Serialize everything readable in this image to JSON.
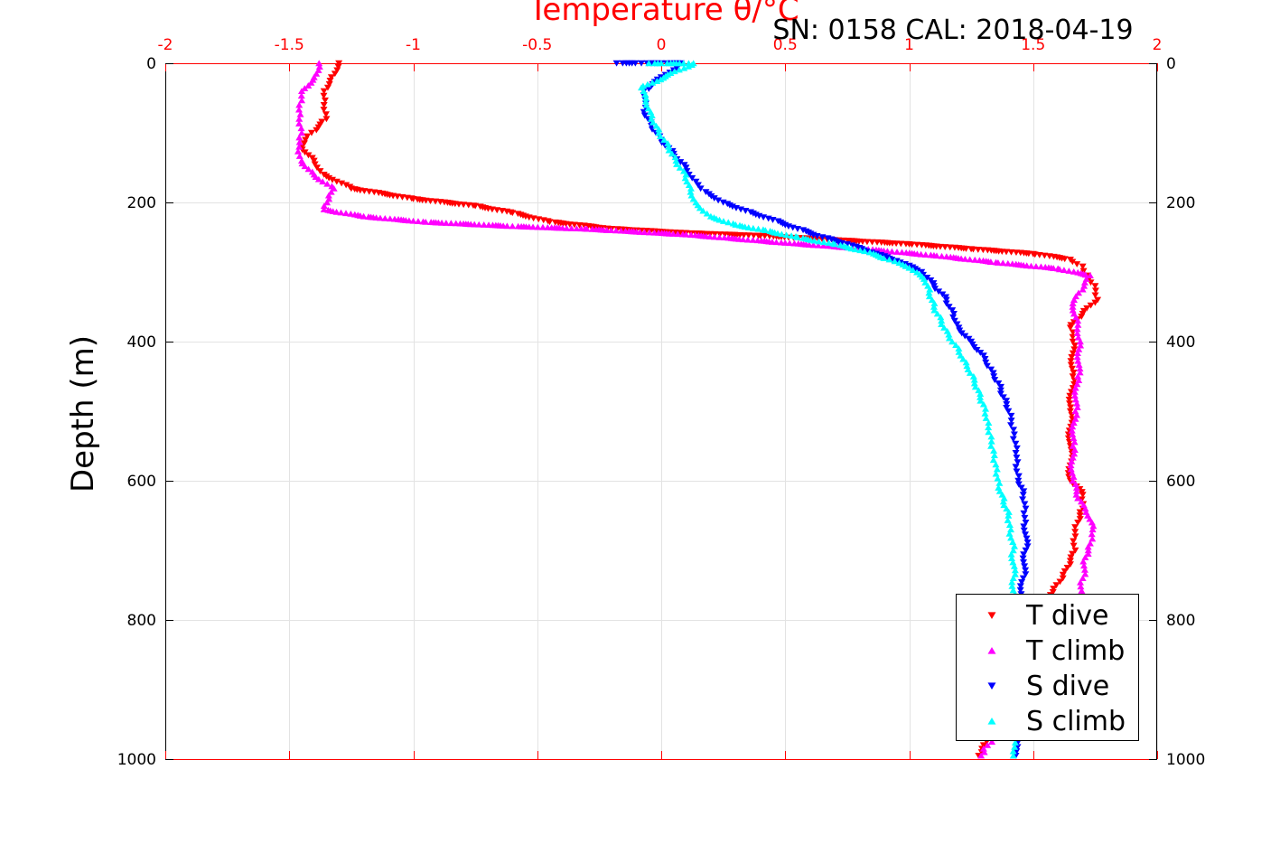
{
  "header": {
    "title": "Temperature θ/°C",
    "annotation": "SN: 0158  CAL: 2018-04-19"
  },
  "chart_data": {
    "type": "scatter",
    "x_axis": {
      "label": "Temperature θ/°C",
      "position": "top",
      "range": [
        -2,
        2
      ],
      "ticks": [
        -2,
        -1.5,
        -1,
        -0.5,
        0,
        0.5,
        1,
        1.5,
        2
      ],
      "tick_labels": [
        "-2",
        "-1.5",
        "-1",
        "-0.5",
        "0",
        "0.5",
        "1",
        "1.5",
        "2"
      ],
      "color": "#ff0000"
    },
    "y_axis": {
      "label": "Depth (m)",
      "range": [
        0,
        1000
      ],
      "reversed": true,
      "ticks": [
        0,
        200,
        400,
        600,
        800,
        1000
      ],
      "tick_labels": [
        "0",
        "200",
        "400",
        "600",
        "800",
        "1000"
      ]
    },
    "grid": true,
    "legend_position": "bottom-right",
    "series": [
      {
        "name": "T dive",
        "color": "#ff0000",
        "marker": "triangle-down",
        "points": [
          [
            -1.3,
            0
          ],
          [
            -1.33,
            20
          ],
          [
            -1.36,
            40
          ],
          [
            -1.36,
            60
          ],
          [
            -1.35,
            80
          ],
          [
            -1.41,
            100
          ],
          [
            -1.45,
            120
          ],
          [
            -1.4,
            140
          ],
          [
            -1.36,
            160
          ],
          [
            -1.25,
            180
          ],
          [
            -1.0,
            195
          ],
          [
            -0.75,
            205
          ],
          [
            -0.6,
            215
          ],
          [
            -0.45,
            228
          ],
          [
            -0.2,
            238
          ],
          [
            0.1,
            244
          ],
          [
            0.4,
            248
          ],
          [
            0.7,
            254
          ],
          [
            1.0,
            260
          ],
          [
            1.25,
            267
          ],
          [
            1.5,
            274
          ],
          [
            1.65,
            282
          ],
          [
            1.7,
            292
          ],
          [
            1.72,
            305
          ],
          [
            1.75,
            320
          ],
          [
            1.76,
            340
          ],
          [
            1.7,
            360
          ],
          [
            1.65,
            380
          ],
          [
            1.66,
            400
          ],
          [
            1.66,
            450
          ],
          [
            1.65,
            500
          ],
          [
            1.65,
            550
          ],
          [
            1.65,
            600
          ],
          [
            1.7,
            620
          ],
          [
            1.7,
            640
          ],
          [
            1.68,
            660
          ],
          [
            1.67,
            680
          ],
          [
            1.67,
            700
          ],
          [
            1.65,
            720
          ],
          [
            1.62,
            740
          ],
          [
            1.58,
            760
          ],
          [
            1.52,
            780
          ],
          [
            1.47,
            800
          ],
          [
            1.4,
            840
          ],
          [
            1.36,
            880
          ],
          [
            1.34,
            920
          ],
          [
            1.32,
            960
          ],
          [
            1.3,
            980
          ],
          [
            1.28,
            995
          ]
        ]
      },
      {
        "name": "T climb",
        "color": "#ff00ff",
        "marker": "triangle-up",
        "points": [
          [
            -1.38,
            0
          ],
          [
            -1.4,
            20
          ],
          [
            -1.45,
            40
          ],
          [
            -1.46,
            60
          ],
          [
            -1.46,
            80
          ],
          [
            -1.45,
            100
          ],
          [
            -1.46,
            120
          ],
          [
            -1.45,
            140
          ],
          [
            -1.4,
            160
          ],
          [
            -1.32,
            180
          ],
          [
            -1.34,
            195
          ],
          [
            -1.36,
            210
          ],
          [
            -1.2,
            220
          ],
          [
            -0.95,
            228
          ],
          [
            -0.6,
            234
          ],
          [
            -0.3,
            238
          ],
          [
            0.1,
            246
          ],
          [
            0.5,
            258
          ],
          [
            0.8,
            266
          ],
          [
            1.1,
            276
          ],
          [
            1.35,
            286
          ],
          [
            1.6,
            295
          ],
          [
            1.73,
            305
          ],
          [
            1.7,
            325
          ],
          [
            1.66,
            345
          ],
          [
            1.68,
            370
          ],
          [
            1.69,
            400
          ],
          [
            1.68,
            450
          ],
          [
            1.67,
            500
          ],
          [
            1.66,
            550
          ],
          [
            1.66,
            600
          ],
          [
            1.68,
            625
          ],
          [
            1.72,
            650
          ],
          [
            1.74,
            670
          ],
          [
            1.73,
            690
          ],
          [
            1.71,
            710
          ],
          [
            1.7,
            740
          ],
          [
            1.69,
            770
          ],
          [
            1.65,
            800
          ],
          [
            1.6,
            830
          ],
          [
            1.55,
            860
          ],
          [
            1.48,
            900
          ],
          [
            1.4,
            940
          ],
          [
            1.34,
            970
          ],
          [
            1.3,
            985
          ],
          [
            1.29,
            995
          ]
        ]
      },
      {
        "name": "S dive",
        "color": "#0000ff",
        "marker": "triangle-down",
        "points": [
          [
            -0.18,
            0
          ],
          [
            -0.08,
            0
          ],
          [
            0.0,
            0
          ],
          [
            0.08,
            0
          ],
          [
            -0.07,
            40
          ],
          [
            -0.07,
            70
          ],
          [
            -0.04,
            90
          ],
          [
            0.0,
            110
          ],
          [
            0.05,
            130
          ],
          [
            0.1,
            150
          ],
          [
            0.14,
            170
          ],
          [
            0.18,
            185
          ],
          [
            0.25,
            200
          ],
          [
            0.34,
            212
          ],
          [
            0.45,
            225
          ],
          [
            0.55,
            238
          ],
          [
            0.65,
            250
          ],
          [
            0.75,
            260
          ],
          [
            0.85,
            272
          ],
          [
            0.95,
            284
          ],
          [
            1.05,
            300
          ],
          [
            1.1,
            320
          ],
          [
            1.15,
            340
          ],
          [
            1.18,
            360
          ],
          [
            1.2,
            380
          ],
          [
            1.25,
            400
          ],
          [
            1.3,
            420
          ],
          [
            1.33,
            440
          ],
          [
            1.36,
            460
          ],
          [
            1.38,
            480
          ],
          [
            1.4,
            500
          ],
          [
            1.41,
            520
          ],
          [
            1.42,
            540
          ],
          [
            1.43,
            560
          ],
          [
            1.43,
            580
          ],
          [
            1.44,
            600
          ],
          [
            1.46,
            620
          ],
          [
            1.47,
            640
          ],
          [
            1.47,
            660
          ],
          [
            1.47,
            700
          ],
          [
            1.46,
            740
          ],
          [
            1.45,
            780
          ],
          [
            1.45,
            820
          ],
          [
            1.45,
            860
          ],
          [
            1.44,
            900
          ],
          [
            1.44,
            940
          ],
          [
            1.43,
            970
          ],
          [
            1.43,
            995
          ]
        ]
      },
      {
        "name": "S climb",
        "color": "#00ffff",
        "marker": "triangle-up",
        "points": [
          [
            -0.05,
            0
          ],
          [
            0.0,
            0
          ],
          [
            0.13,
            0
          ],
          [
            -0.08,
            35
          ],
          [
            -0.06,
            60
          ],
          [
            -0.04,
            80
          ],
          [
            -0.01,
            100
          ],
          [
            0.03,
            120
          ],
          [
            0.06,
            140
          ],
          [
            0.1,
            160
          ],
          [
            0.12,
            180
          ],
          [
            0.14,
            200
          ],
          [
            0.2,
            220
          ],
          [
            0.3,
            232
          ],
          [
            0.42,
            240
          ],
          [
            0.55,
            250
          ],
          [
            0.7,
            260
          ],
          [
            0.82,
            270
          ],
          [
            0.92,
            282
          ],
          [
            1.0,
            294
          ],
          [
            1.06,
            310
          ],
          [
            1.08,
            330
          ],
          [
            1.1,
            350
          ],
          [
            1.13,
            370
          ],
          [
            1.16,
            390
          ],
          [
            1.2,
            410
          ],
          [
            1.23,
            430
          ],
          [
            1.26,
            450
          ],
          [
            1.28,
            470
          ],
          [
            1.3,
            490
          ],
          [
            1.31,
            510
          ],
          [
            1.32,
            530
          ],
          [
            1.33,
            550
          ],
          [
            1.34,
            570
          ],
          [
            1.35,
            590
          ],
          [
            1.36,
            610
          ],
          [
            1.38,
            630
          ],
          [
            1.4,
            650
          ],
          [
            1.41,
            670
          ],
          [
            1.42,
            700
          ],
          [
            1.42,
            740
          ],
          [
            1.43,
            780
          ],
          [
            1.43,
            820
          ],
          [
            1.43,
            860
          ],
          [
            1.43,
            900
          ],
          [
            1.42,
            940
          ],
          [
            1.42,
            970
          ],
          [
            1.42,
            995
          ]
        ]
      }
    ]
  }
}
